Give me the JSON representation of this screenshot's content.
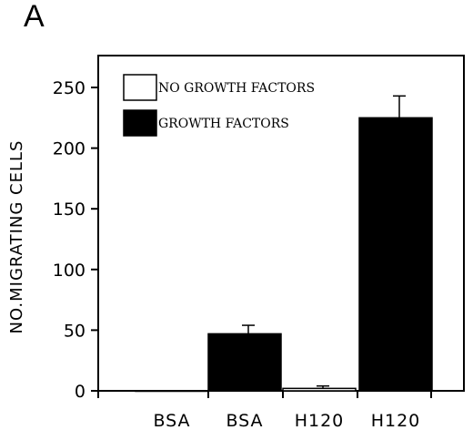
{
  "panel_label": "A",
  "chart_data": {
    "type": "bar",
    "categories": [
      "BSA",
      "BSA",
      "H120",
      "H120"
    ],
    "series": [
      {
        "name": "NO GROWTH FACTORS",
        "fill": "#ffffff",
        "values": [
          0,
          null,
          2,
          null
        ],
        "errors": [
          0,
          null,
          2,
          null
        ]
      },
      {
        "name": "GROWTH FACTORS",
        "fill": "#000000",
        "values": [
          null,
          47,
          null,
          225
        ],
        "errors": [
          null,
          7,
          null,
          18
        ]
      }
    ],
    "ylabel": "NO.MIGRATING CELLS",
    "xlabel": "",
    "ylim": [
      0,
      275
    ],
    "yticks": [
      0,
      50,
      100,
      150,
      200,
      250
    ],
    "legend_position": "top-left"
  }
}
